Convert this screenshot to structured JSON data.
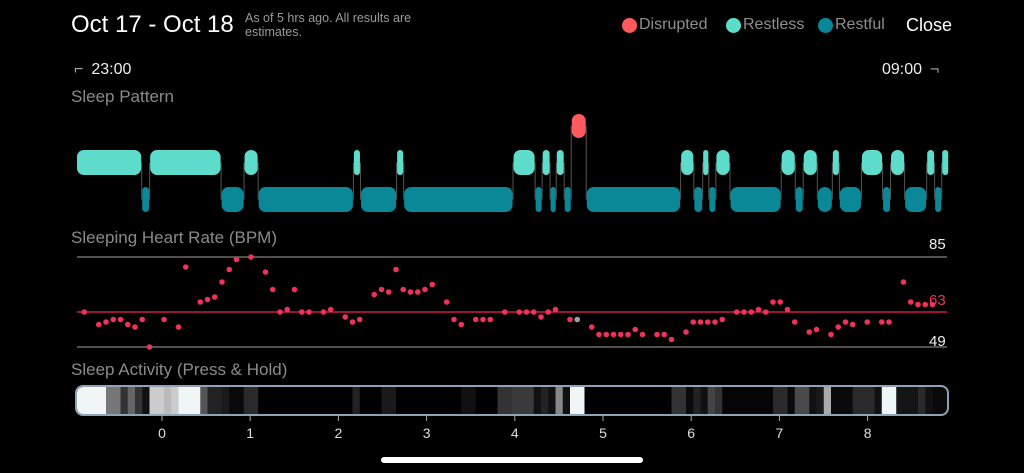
{
  "header": {
    "title": "Oct 17 - Oct 18",
    "subtitle": "As of 5 hrs ago. All results are estimates.",
    "close_label": "Close",
    "legend": [
      {
        "label": "Disrupted",
        "color": "#ff5a5f"
      },
      {
        "label": "Restless",
        "color": "#5edccb"
      },
      {
        "label": "Restful",
        "color": "#0a8898"
      }
    ]
  },
  "range": {
    "start": "23:00",
    "end": "09:00"
  },
  "sleep_pattern": {
    "title": "Sleep Pattern",
    "colors": {
      "disrupted": "#ff5a5f",
      "restless": "#5edccb",
      "restful": "#0a8898"
    },
    "segments": [
      {
        "state": "restless",
        "start": -0.97,
        "end": -0.23
      },
      {
        "state": "restful",
        "start": -0.23,
        "end": -0.14
      },
      {
        "state": "restless",
        "start": -0.14,
        "end": 0.67
      },
      {
        "state": "restful",
        "start": 0.67,
        "end": 0.93
      },
      {
        "state": "restless",
        "start": 0.93,
        "end": 1.09
      },
      {
        "state": "restful",
        "start": 1.09,
        "end": 2.17
      },
      {
        "state": "restless",
        "start": 2.17,
        "end": 2.25
      },
      {
        "state": "restful",
        "start": 2.25,
        "end": 2.66
      },
      {
        "state": "restless",
        "start": 2.66,
        "end": 2.74
      },
      {
        "state": "restful",
        "start": 2.74,
        "end": 3.98
      },
      {
        "state": "restless",
        "start": 3.98,
        "end": 4.23
      },
      {
        "state": "restful",
        "start": 4.23,
        "end": 4.31
      },
      {
        "state": "restless",
        "start": 4.31,
        "end": 4.4
      },
      {
        "state": "restful",
        "start": 4.4,
        "end": 4.47
      },
      {
        "state": "restless",
        "start": 4.47,
        "end": 4.56
      },
      {
        "state": "restful",
        "start": 4.56,
        "end": 4.64
      },
      {
        "state": "disrupted",
        "start": 4.64,
        "end": 4.81
      },
      {
        "state": "restful",
        "start": 4.81,
        "end": 5.88
      },
      {
        "state": "restless",
        "start": 5.88,
        "end": 6.03
      },
      {
        "state": "restful",
        "start": 6.03,
        "end": 6.13
      },
      {
        "state": "restless",
        "start": 6.13,
        "end": 6.2
      },
      {
        "state": "restful",
        "start": 6.2,
        "end": 6.28
      },
      {
        "state": "restless",
        "start": 6.28,
        "end": 6.44
      },
      {
        "state": "restful",
        "start": 6.44,
        "end": 7.02
      },
      {
        "state": "restless",
        "start": 7.02,
        "end": 7.18
      },
      {
        "state": "restful",
        "start": 7.18,
        "end": 7.27
      },
      {
        "state": "restless",
        "start": 7.27,
        "end": 7.43
      },
      {
        "state": "restful",
        "start": 7.43,
        "end": 7.6
      },
      {
        "state": "restless",
        "start": 7.6,
        "end": 7.68
      },
      {
        "state": "restful",
        "start": 7.68,
        "end": 7.93
      },
      {
        "state": "restless",
        "start": 7.93,
        "end": 8.17
      },
      {
        "state": "restful",
        "start": 8.17,
        "end": 8.26
      },
      {
        "state": "restless",
        "start": 8.26,
        "end": 8.42
      },
      {
        "state": "restful",
        "start": 8.42,
        "end": 8.67
      },
      {
        "state": "restless",
        "start": 8.67,
        "end": 8.76
      },
      {
        "state": "restful",
        "start": 8.76,
        "end": 8.84
      },
      {
        "state": "restless",
        "start": 8.84,
        "end": 8.92
      }
    ]
  },
  "chart_data": {
    "type": "scatter",
    "title": "Sleeping Heart Rate (BPM)",
    "ylim": [
      49,
      85
    ],
    "y_max_label": "85",
    "y_min_label": "49",
    "average": 63,
    "average_label": "63",
    "interval_minutes": 5,
    "point_color": "#f0325a",
    "highlight_color": "#a0a0a0",
    "highlight_index": 68,
    "values": [
      63,
      null,
      58,
      59,
      60,
      60,
      58,
      57,
      60,
      49,
      null,
      60,
      null,
      57,
      81,
      null,
      67,
      68,
      69,
      75,
      80,
      84,
      null,
      85,
      null,
      79,
      72,
      63,
      64,
      72,
      63,
      63,
      null,
      63,
      64,
      null,
      61,
      59,
      60,
      null,
      70,
      72,
      71,
      80,
      72,
      71,
      71,
      72,
      74,
      null,
      67,
      60,
      58,
      null,
      60,
      60,
      60,
      null,
      63,
      null,
      63,
      63,
      63,
      61,
      63,
      64,
      null,
      60,
      60,
      null,
      57,
      54,
      54,
      54,
      54,
      54,
      56,
      54,
      null,
      54,
      54,
      52,
      null,
      55,
      59,
      59,
      59,
      59,
      60,
      null,
      63,
      63,
      63,
      64,
      63,
      67,
      67,
      64,
      59,
      null,
      55,
      56,
      null,
      54,
      57,
      59,
      58,
      null,
      59,
      null,
      59,
      59,
      null,
      75,
      67,
      66,
      66,
      66
    ]
  },
  "sleep_activity": {
    "title": "Sleep Activity (Press & Hold)",
    "border_color": "#8fa3b8",
    "levels": [
      243,
      243,
      243,
      243,
      119,
      119,
      51,
      102,
      51,
      17,
      204,
      204,
      187,
      204,
      243,
      243,
      243,
      85,
      34,
      34,
      26,
      10,
      10,
      42,
      42,
      0,
      0,
      0,
      0,
      0,
      0,
      0,
      0,
      0,
      0,
      0,
      0,
      0,
      34,
      0,
      0,
      0,
      26,
      26,
      0,
      0,
      0,
      0,
      0,
      0,
      0,
      0,
      0,
      17,
      17,
      0,
      0,
      0,
      51,
      51,
      58,
      58,
      58,
      17,
      34,
      17,
      136,
      17,
      255,
      255,
      0,
      0,
      0,
      0,
      0,
      0,
      0,
      0,
      0,
      0,
      0,
      0,
      51,
      51,
      10,
      34,
      17,
      68,
      51,
      5,
      5,
      5,
      5,
      5,
      5,
      5,
      42,
      42,
      10,
      74,
      74,
      17,
      26,
      170,
      10,
      10,
      10,
      42,
      42,
      42,
      17,
      243,
      243,
      21,
      21,
      21,
      42,
      17,
      10,
      10
    ],
    "ticks": [
      "0",
      "1",
      "2",
      "3",
      "4",
      "5",
      "6",
      "7",
      "8"
    ]
  }
}
